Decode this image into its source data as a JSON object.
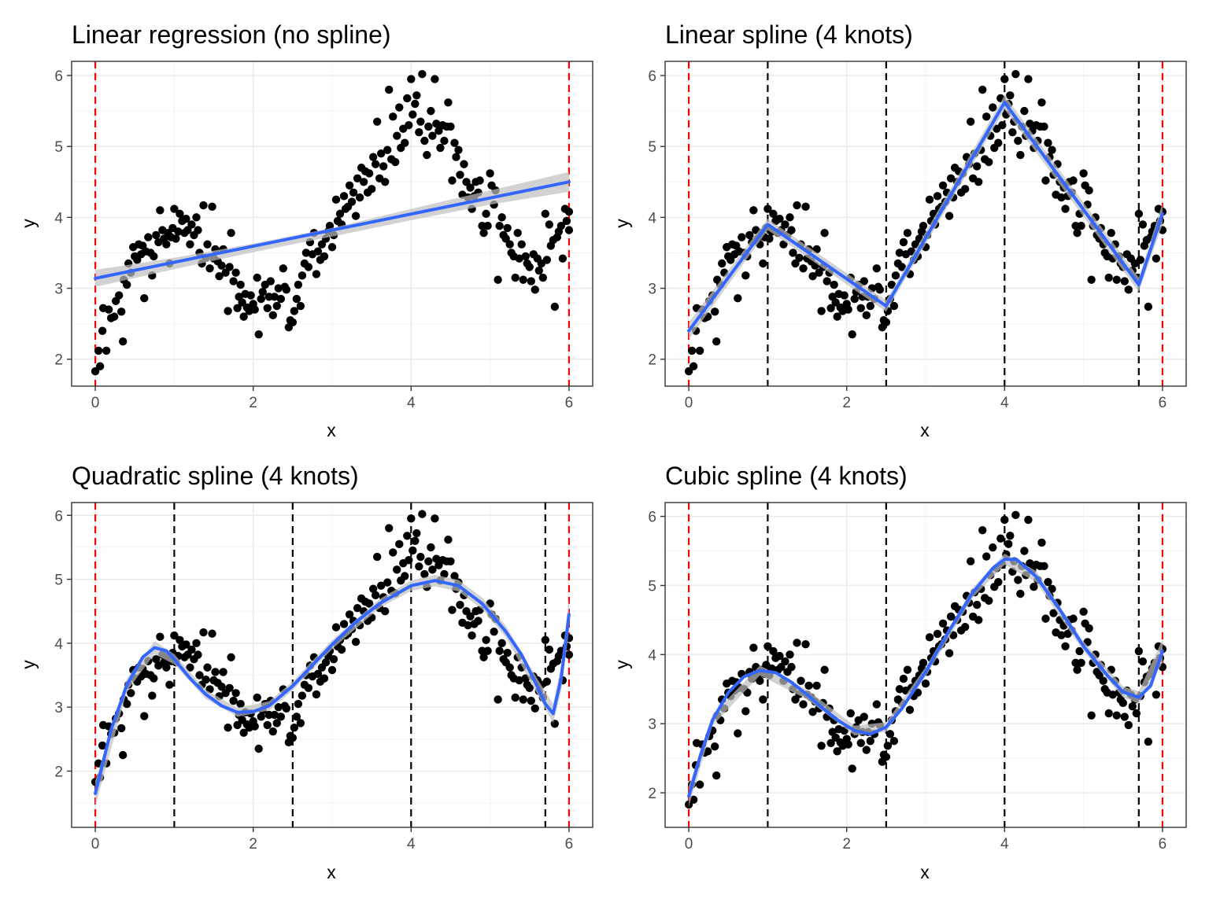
{
  "chart_data": [
    {
      "type": "scatter",
      "title": "Linear regression (no spline)",
      "xlabel": "x",
      "ylabel": "y",
      "xlim": [
        -0.3,
        6.3
      ],
      "ylim": [
        1.62,
        6.2
      ],
      "xticks": [
        "0",
        "2",
        "4",
        "6"
      ],
      "yticks": [
        "2",
        "3",
        "4",
        "5",
        "6"
      ],
      "boundary_knots": [
        0,
        6
      ],
      "interior_knots": [],
      "fit": [
        [
          0,
          3.14
        ],
        [
          6,
          4.5
        ]
      ],
      "band": [
        [
          0,
          3.02,
          3.26
        ],
        [
          1,
          3.27,
          3.43
        ],
        [
          2,
          3.51,
          3.63
        ],
        [
          3,
          3.73,
          3.85
        ],
        [
          4,
          3.96,
          4.12
        ],
        [
          5,
          4.18,
          4.38
        ],
        [
          6,
          4.36,
          4.64
        ]
      ]
    },
    {
      "type": "scatter",
      "title": "Linear spline (4 knots)",
      "xlabel": "x",
      "ylabel": "y",
      "xlim": [
        -0.3,
        6.3
      ],
      "ylim": [
        1.62,
        6.2
      ],
      "xticks": [
        "0",
        "2",
        "4",
        "6"
      ],
      "yticks": [
        "2",
        "3",
        "4",
        "5",
        "6"
      ],
      "boundary_knots": [
        0,
        6
      ],
      "interior_knots": [
        1,
        2.5,
        4,
        5.7
      ],
      "fit": [
        [
          0,
          2.4
        ],
        [
          1,
          3.9
        ],
        [
          2.5,
          2.75
        ],
        [
          4,
          5.62
        ],
        [
          5.7,
          3.05
        ],
        [
          6,
          4.05
        ]
      ],
      "band": [
        [
          0,
          2.28,
          2.52
        ],
        [
          1,
          3.82,
          3.98
        ],
        [
          2.5,
          2.67,
          2.83
        ],
        [
          4,
          5.52,
          5.72
        ],
        [
          5.7,
          2.95,
          3.15
        ],
        [
          6,
          3.9,
          4.2
        ]
      ]
    },
    {
      "type": "scatter",
      "title": "Quadratic spline (4 knots)",
      "xlabel": "x",
      "ylabel": "y",
      "xlim": [
        -0.3,
        6.3
      ],
      "ylim": [
        1.12,
        6.2
      ],
      "xticks": [
        "0",
        "2",
        "4",
        "6"
      ],
      "yticks": [
        "2",
        "3",
        "4",
        "5",
        "6"
      ],
      "boundary_knots": [
        0,
        6
      ],
      "interior_knots": [
        1,
        2.5,
        4,
        5.7
      ],
      "fit": [
        [
          0,
          1.65
        ],
        [
          0.2,
          2.65
        ],
        [
          0.4,
          3.35
        ],
        [
          0.6,
          3.78
        ],
        [
          0.75,
          3.93
        ],
        [
          0.9,
          3.88
        ],
        [
          1.0,
          3.75
        ],
        [
          1.2,
          3.45
        ],
        [
          1.4,
          3.2
        ],
        [
          1.6,
          3.02
        ],
        [
          1.8,
          2.92
        ],
        [
          2.0,
          2.93
        ],
        [
          2.2,
          3.02
        ],
        [
          2.5,
          3.33
        ],
        [
          2.8,
          3.72
        ],
        [
          3.0,
          3.98
        ],
        [
          3.3,
          4.33
        ],
        [
          3.6,
          4.62
        ],
        [
          4.0,
          4.9
        ],
        [
          4.3,
          4.98
        ],
        [
          4.6,
          4.9
        ],
        [
          4.9,
          4.62
        ],
        [
          5.2,
          4.18
        ],
        [
          5.4,
          3.82
        ],
        [
          5.6,
          3.32
        ],
        [
          5.7,
          3.05
        ],
        [
          5.8,
          2.9
        ],
        [
          5.9,
          3.45
        ],
        [
          6.0,
          4.45
        ]
      ],
      "band": [
        [
          0,
          1.45,
          1.85
        ],
        [
          0.4,
          3.25,
          3.45
        ],
        [
          0.75,
          3.83,
          4.03
        ],
        [
          1.0,
          3.67,
          3.83
        ],
        [
          1.4,
          3.13,
          3.27
        ],
        [
          1.8,
          2.85,
          2.99
        ],
        [
          2.2,
          2.95,
          3.09
        ],
        [
          2.5,
          3.26,
          3.4
        ],
        [
          3.0,
          3.91,
          4.05
        ],
        [
          3.6,
          4.55,
          4.69
        ],
        [
          4.0,
          4.82,
          4.98
        ],
        [
          4.3,
          4.89,
          5.07
        ],
        [
          4.6,
          4.81,
          4.99
        ],
        [
          4.9,
          4.53,
          4.71
        ],
        [
          5.2,
          4.09,
          4.27
        ],
        [
          5.6,
          3.2,
          3.44
        ],
        [
          5.8,
          2.75,
          3.05
        ],
        [
          5.9,
          3.25,
          3.65
        ],
        [
          6.0,
          4.2,
          4.7
        ]
      ]
    },
    {
      "type": "scatter",
      "title": "Cubic spline (4 knots)",
      "xlabel": "x",
      "ylabel": "y",
      "xlim": [
        -0.3,
        6.3
      ],
      "ylim": [
        1.5,
        6.2
      ],
      "xticks": [
        "0",
        "2",
        "4",
        "6"
      ],
      "yticks": [
        "2",
        "3",
        "4",
        "5",
        "6"
      ],
      "boundary_knots": [
        0,
        6
      ],
      "interior_knots": [
        1,
        2.5,
        4,
        5.7
      ],
      "fit": [
        [
          0,
          1.95
        ],
        [
          0.15,
          2.55
        ],
        [
          0.3,
          3.05
        ],
        [
          0.5,
          3.45
        ],
        [
          0.7,
          3.68
        ],
        [
          0.9,
          3.77
        ],
        [
          1.1,
          3.74
        ],
        [
          1.3,
          3.6
        ],
        [
          1.5,
          3.42
        ],
        [
          1.7,
          3.22
        ],
        [
          1.9,
          3.04
        ],
        [
          2.1,
          2.9
        ],
        [
          2.3,
          2.85
        ],
        [
          2.5,
          2.95
        ],
        [
          2.7,
          3.22
        ],
        [
          3.0,
          3.75
        ],
        [
          3.3,
          4.35
        ],
        [
          3.6,
          4.9
        ],
        [
          3.85,
          5.25
        ],
        [
          4.0,
          5.38
        ],
        [
          4.15,
          5.38
        ],
        [
          4.4,
          5.13
        ],
        [
          4.7,
          4.65
        ],
        [
          5.0,
          4.12
        ],
        [
          5.3,
          3.7
        ],
        [
          5.5,
          3.46
        ],
        [
          5.7,
          3.38
        ],
        [
          5.85,
          3.55
        ],
        [
          6.0,
          4.05
        ]
      ],
      "band": [
        [
          0,
          1.8,
          2.1
        ],
        [
          0.3,
          2.97,
          3.13
        ],
        [
          0.9,
          3.7,
          3.84
        ],
        [
          1.5,
          3.35,
          3.49
        ],
        [
          2.1,
          2.83,
          2.97
        ],
        [
          2.5,
          2.88,
          3.02
        ],
        [
          3.0,
          3.68,
          3.82
        ],
        [
          3.6,
          4.83,
          4.97
        ],
        [
          4.0,
          5.3,
          5.46
        ],
        [
          4.4,
          5.05,
          5.21
        ],
        [
          5.0,
          4.05,
          4.19
        ],
        [
          5.5,
          3.38,
          3.54
        ],
        [
          5.7,
          3.29,
          3.47
        ],
        [
          6.0,
          3.88,
          4.22
        ]
      ]
    }
  ],
  "points": [
    [
      0.0,
      1.83
    ],
    [
      0.04,
      2.12
    ],
    [
      0.06,
      1.9
    ],
    [
      0.09,
      2.4
    ],
    [
      0.1,
      2.72
    ],
    [
      0.14,
      2.12
    ],
    [
      0.17,
      2.7
    ],
    [
      0.2,
      2.58
    ],
    [
      0.24,
      2.6
    ],
    [
      0.26,
      2.82
    ],
    [
      0.3,
      2.9
    ],
    [
      0.33,
      2.67
    ],
    [
      0.35,
      2.25
    ],
    [
      0.36,
      3.12
    ],
    [
      0.4,
      3.05
    ],
    [
      0.42,
      3.35
    ],
    [
      0.45,
      3.22
    ],
    [
      0.48,
      3.58
    ],
    [
      0.5,
      3.45
    ],
    [
      0.53,
      3.4
    ],
    [
      0.55,
      3.62
    ],
    [
      0.58,
      3.48
    ],
    [
      0.6,
      3.6
    ],
    [
      0.62,
      2.86
    ],
    [
      0.64,
      3.52
    ],
    [
      0.67,
      3.72
    ],
    [
      0.7,
      3.5
    ],
    [
      0.72,
      3.18
    ],
    [
      0.74,
      3.45
    ],
    [
      0.77,
      3.75
    ],
    [
      0.8,
      3.65
    ],
    [
      0.82,
      4.1
    ],
    [
      0.85,
      3.82
    ],
    [
      0.87,
      3.7
    ],
    [
      0.9,
      3.62
    ],
    [
      0.92,
      3.78
    ],
    [
      0.94,
      3.35
    ],
    [
      0.96,
      3.72
    ],
    [
      0.98,
      3.85
    ],
    [
      1.0,
      4.12
    ],
    [
      1.02,
      3.7
    ],
    [
      1.05,
      3.8
    ],
    [
      1.07,
      4.05
    ],
    [
      1.1,
      3.95
    ],
    [
      1.13,
      3.78
    ],
    [
      1.15,
      3.98
    ],
    [
      1.17,
      3.82
    ],
    [
      1.2,
      3.62
    ],
    [
      1.22,
      3.9
    ],
    [
      1.25,
      3.75
    ],
    [
      1.28,
      4.0
    ],
    [
      1.3,
      3.82
    ],
    [
      1.32,
      3.5
    ],
    [
      1.35,
      3.35
    ],
    [
      1.37,
      4.17
    ],
    [
      1.4,
      3.43
    ],
    [
      1.42,
      3.62
    ],
    [
      1.45,
      3.28
    ],
    [
      1.48,
      4.15
    ],
    [
      1.5,
      3.42
    ],
    [
      1.52,
      3.55
    ],
    [
      1.55,
      3.38
    ],
    [
      1.57,
      3.17
    ],
    [
      1.6,
      3.32
    ],
    [
      1.62,
      3.55
    ],
    [
      1.65,
      3.22
    ],
    [
      1.68,
      2.68
    ],
    [
      1.7,
      3.3
    ],
    [
      1.72,
      3.78
    ],
    [
      1.75,
      3.1
    ],
    [
      1.78,
      3.22
    ],
    [
      1.8,
      2.72
    ],
    [
      1.82,
      2.88
    ],
    [
      1.84,
      3.05
    ],
    [
      1.86,
      2.8
    ],
    [
      1.88,
      2.6
    ],
    [
      1.9,
      2.92
    ],
    [
      1.92,
      2.73
    ],
    [
      1.95,
      2.68
    ],
    [
      1.97,
      2.9
    ],
    [
      2.0,
      2.78
    ],
    [
      2.02,
      2.7
    ],
    [
      2.05,
      3.15
    ],
    [
      2.07,
      2.35
    ],
    [
      2.1,
      2.85
    ],
    [
      2.12,
      2.95
    ],
    [
      2.15,
      3.05
    ],
    [
      2.18,
      2.72
    ],
    [
      2.2,
      2.88
    ],
    [
      2.22,
      3.1
    ],
    [
      2.25,
      2.62
    ],
    [
      2.27,
      2.88
    ],
    [
      2.3,
      2.75
    ],
    [
      2.32,
      3.0
    ],
    [
      2.35,
      2.85
    ],
    [
      2.38,
      3.28
    ],
    [
      2.4,
      3.02
    ],
    [
      2.42,
      2.98
    ],
    [
      2.45,
      2.45
    ],
    [
      2.47,
      2.55
    ],
    [
      2.5,
      2.52
    ],
    [
      2.52,
      2.68
    ],
    [
      2.55,
      2.85
    ],
    [
      2.57,
      3.05
    ],
    [
      2.6,
      2.75
    ],
    [
      2.62,
      3.18
    ],
    [
      2.65,
      3.35
    ],
    [
      2.67,
      3.5
    ],
    [
      2.7,
      3.3
    ],
    [
      2.72,
      3.65
    ],
    [
      2.75,
      3.48
    ],
    [
      2.77,
      3.78
    ],
    [
      2.8,
      3.2
    ],
    [
      2.82,
      3.52
    ],
    [
      2.85,
      3.4
    ],
    [
      2.87,
      3.62
    ],
    [
      2.9,
      3.45
    ],
    [
      2.92,
      3.7
    ],
    [
      2.95,
      3.8
    ],
    [
      2.97,
      3.88
    ],
    [
      3.0,
      3.58
    ],
    [
      3.02,
      3.75
    ],
    [
      3.05,
      4.25
    ],
    [
      3.07,
      3.95
    ],
    [
      3.1,
      4.05
    ],
    [
      3.12,
      3.9
    ],
    [
      3.15,
      4.3
    ],
    [
      3.17,
      4.12
    ],
    [
      3.2,
      4.15
    ],
    [
      3.22,
      4.45
    ],
    [
      3.25,
      4.22
    ],
    [
      3.27,
      4.35
    ],
    [
      3.3,
      4.02
    ],
    [
      3.32,
      4.55
    ],
    [
      3.35,
      4.28
    ],
    [
      3.37,
      4.7
    ],
    [
      3.4,
      4.5
    ],
    [
      3.42,
      4.65
    ],
    [
      3.45,
      4.35
    ],
    [
      3.47,
      4.62
    ],
    [
      3.5,
      4.4
    ],
    [
      3.52,
      4.85
    ],
    [
      3.55,
      4.75
    ],
    [
      3.57,
      5.35
    ],
    [
      3.6,
      4.55
    ],
    [
      3.62,
      4.9
    ],
    [
      3.65,
      4.72
    ],
    [
      3.67,
      4.5
    ],
    [
      3.7,
      4.95
    ],
    [
      3.72,
      5.8
    ],
    [
      3.75,
      4.82
    ],
    [
      3.77,
      5.42
    ],
    [
      3.8,
      4.78
    ],
    [
      3.82,
      5.15
    ],
    [
      3.85,
      5.55
    ],
    [
      3.87,
      4.98
    ],
    [
      3.9,
      5.25
    ],
    [
      3.92,
      5.05
    ],
    [
      3.95,
      5.68
    ],
    [
      3.97,
      5.3
    ],
    [
      4.0,
      5.95
    ],
    [
      4.02,
      5.45
    ],
    [
      4.05,
      5.6
    ],
    [
      4.07,
      5.72
    ],
    [
      4.1,
      5.2
    ],
    [
      4.12,
      5.35
    ],
    [
      4.14,
      6.02
    ],
    [
      4.17,
      5.08
    ],
    [
      4.2,
      4.88
    ],
    [
      4.22,
      5.28
    ],
    [
      4.25,
      5.5
    ],
    [
      4.27,
      5.15
    ],
    [
      4.3,
      5.95
    ],
    [
      4.32,
      5.32
    ],
    [
      4.35,
      5.22
    ],
    [
      4.37,
      4.98
    ],
    [
      4.4,
      5.3
    ],
    [
      4.42,
      5.08
    ],
    [
      4.45,
      5.28
    ],
    [
      4.47,
      5.62
    ],
    [
      4.5,
      5.28
    ],
    [
      4.52,
      4.52
    ],
    [
      4.55,
      5.05
    ],
    [
      4.57,
      4.85
    ],
    [
      4.6,
      4.95
    ],
    [
      4.62,
      4.6
    ],
    [
      4.65,
      4.32
    ],
    [
      4.67,
      4.75
    ],
    [
      4.7,
      4.5
    ],
    [
      4.72,
      4.28
    ],
    [
      4.75,
      4.42
    ],
    [
      4.77,
      4.12
    ],
    [
      4.8,
      4.3
    ],
    [
      4.82,
      4.5
    ],
    [
      4.85,
      4.35
    ],
    [
      4.87,
      4.52
    ],
    [
      4.9,
      3.88
    ],
    [
      4.92,
      3.78
    ],
    [
      4.95,
      4.05
    ],
    [
      4.97,
      3.88
    ],
    [
      5.0,
      4.62
    ],
    [
      5.02,
      4.45
    ],
    [
      5.05,
      4.18
    ],
    [
      5.07,
      4.38
    ],
    [
      5.1,
      3.12
    ],
    [
      5.12,
      3.88
    ],
    [
      5.15,
      4.0
    ],
    [
      5.17,
      3.75
    ],
    [
      5.2,
      3.7
    ],
    [
      5.22,
      3.85
    ],
    [
      5.25,
      3.62
    ],
    [
      5.27,
      3.5
    ],
    [
      5.3,
      3.45
    ],
    [
      5.32,
      3.15
    ],
    [
      5.35,
      3.78
    ],
    [
      5.37,
      3.42
    ],
    [
      5.4,
      3.62
    ],
    [
      5.42,
      3.12
    ],
    [
      5.45,
      3.45
    ],
    [
      5.47,
      3.35
    ],
    [
      5.5,
      3.3
    ],
    [
      5.52,
      3.1
    ],
    [
      5.55,
      3.48
    ],
    [
      5.57,
      2.98
    ],
    [
      5.6,
      3.42
    ],
    [
      5.62,
      3.25
    ],
    [
      5.65,
      3.35
    ],
    [
      5.67,
      3.15
    ],
    [
      5.7,
      4.05
    ],
    [
      5.72,
      3.4
    ],
    [
      5.75,
      3.9
    ],
    [
      5.77,
      3.6
    ],
    [
      5.8,
      3.68
    ],
    [
      5.82,
      2.74
    ],
    [
      5.85,
      3.72
    ],
    [
      5.87,
      3.8
    ],
    [
      5.9,
      3.88
    ],
    [
      5.92,
      3.42
    ],
    [
      5.95,
      4.12
    ],
    [
      5.97,
      3.95
    ],
    [
      6.0,
      3.82
    ],
    [
      6.0,
      4.08
    ]
  ],
  "colors": {
    "points": "#000000",
    "fit_line": "#3366FF",
    "ci_band": "#bfbfbf",
    "boundary_knot": "#FF0000",
    "interior_knot": "#000000",
    "grid_major": "#ebebeb",
    "grid_minor": "#f4f4f4",
    "panel_border": "#333333"
  }
}
